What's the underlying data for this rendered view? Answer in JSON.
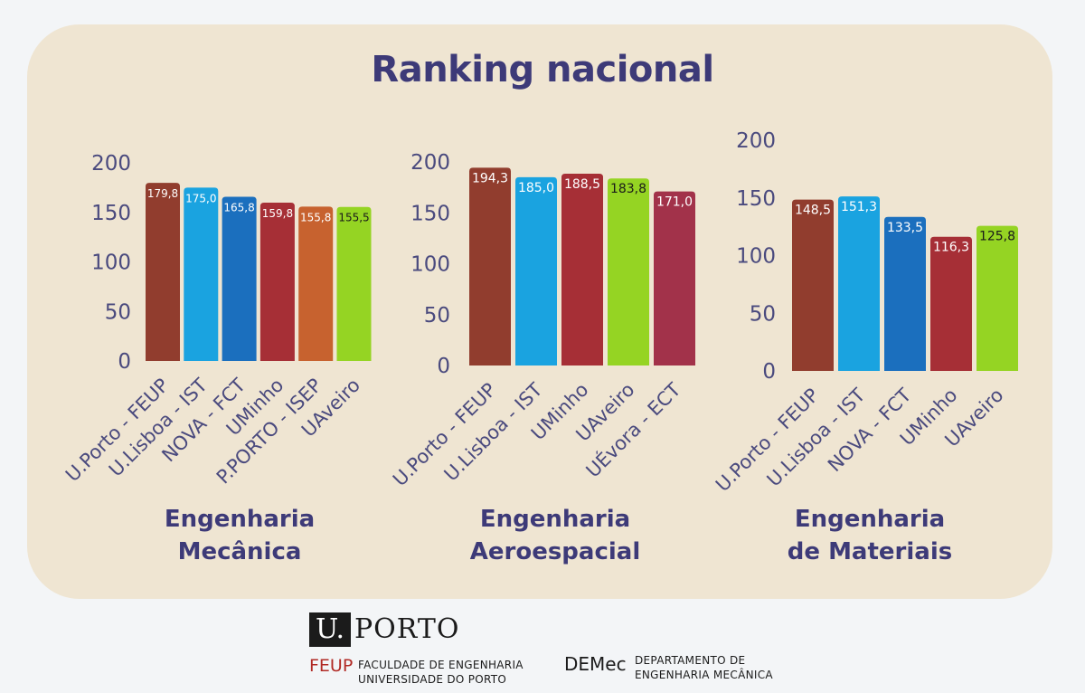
{
  "title": "Ranking nacional",
  "chart_data": [
    {
      "type": "bar",
      "title": "Engenharia Mecânica",
      "title_lines": [
        "Engenharia",
        "Mecânica"
      ],
      "ylim": [
        0,
        200
      ],
      "yticks": [
        "0",
        "50",
        "100",
        "150",
        "200"
      ],
      "grid": false,
      "categories": [
        "U.Porto - FEUP",
        "U.Lisboa - IST",
        "NOVA - FCT",
        "UMinho",
        "P.PORTO - ISEP",
        "UAveiro"
      ],
      "values": [
        179.8,
        175.0,
        165.8,
        159.8,
        155.8,
        155.5
      ],
      "value_labels": [
        "179,8",
        "175,0",
        "165,8",
        "159,8",
        "155,8",
        "155,5"
      ],
      "colors": [
        "#913d2e",
        "#1aa3e0",
        "#1b6fbe",
        "#a62f36",
        "#c7622f",
        "#95d423"
      ]
    },
    {
      "type": "bar",
      "title": "Engenharia Aeroespacial",
      "title_lines": [
        "Engenharia",
        "Aeroespacial"
      ],
      "ylim": [
        0,
        200
      ],
      "yticks": [
        "0",
        "50",
        "100",
        "150",
        "200"
      ],
      "grid": false,
      "categories": [
        "U.Porto - FEUP",
        "U.Lisboa - IST",
        "UMinho",
        "UAveiro",
        "UÉvora - ECT"
      ],
      "values": [
        194.3,
        185.0,
        188.5,
        183.8,
        171.0
      ],
      "value_labels": [
        "194,3",
        "185,0",
        "188,5",
        "183,8",
        "171,0"
      ],
      "colors": [
        "#913d2e",
        "#1aa3e0",
        "#a62f36",
        "#95d423",
        "#a2324a"
      ]
    },
    {
      "type": "bar",
      "title": "Engenharia de Materiais",
      "title_lines": [
        "Engenharia",
        "de Materiais"
      ],
      "ylim": [
        0,
        200
      ],
      "yticks": [
        "0",
        "50",
        "100",
        "150",
        "200"
      ],
      "grid": false,
      "categories": [
        "U.Porto - FEUP",
        "U.Lisboa - IST",
        "NOVA - FCT",
        "UMinho",
        "UAveiro"
      ],
      "values": [
        148.5,
        151.3,
        133.5,
        116.3,
        125.8
      ],
      "value_labels": [
        "148,5",
        "151,3",
        "133,5",
        "116,3",
        "125,8"
      ],
      "colors": [
        "#913d2e",
        "#1aa3e0",
        "#1b6fbe",
        "#a62f36",
        "#95d423"
      ]
    }
  ],
  "colors": {
    "panel": "#efe5d2",
    "title": "#3d3a78",
    "axis_text": "#4a4a7e"
  },
  "footer": {
    "uporto": {
      "box_letter": "U.",
      "word": "PORTO"
    },
    "feup": {
      "acronym": "FEUP",
      "line1": "FACULDADE DE ENGENHARIA",
      "line2": "UNIVERSIDADE DO PORTO"
    },
    "demec": {
      "acronym": "DEMec",
      "line1": "DEPARTAMENTO DE",
      "line2": "ENGENHARIA MECÂNICA"
    }
  }
}
